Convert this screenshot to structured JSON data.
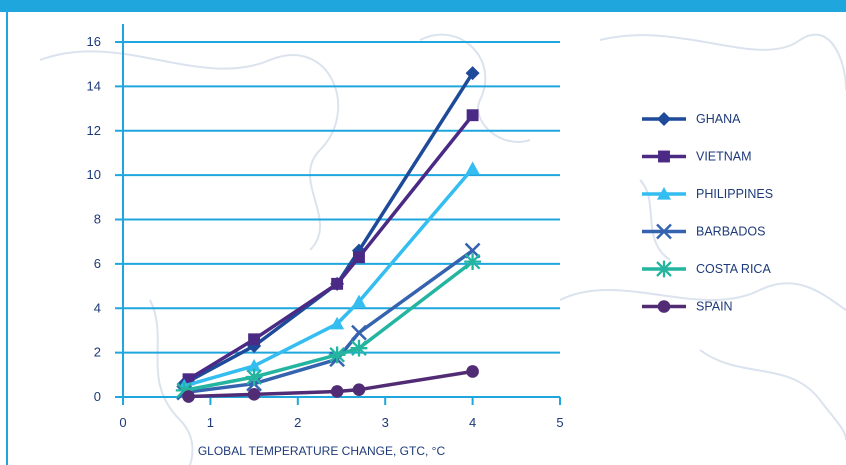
{
  "colors": {
    "top_band": "#1fa7dd",
    "left_rule": "#1fa7dd",
    "gridline": "#1fa7dd",
    "axis_text": "#1e3a7a",
    "xlabel_text": "#1e3a7a",
    "legend_text": "#1e3a7a",
    "map_outline": "#dbe3ee"
  },
  "chart_data": {
    "type": "line",
    "xlabel": "GLOBAL TEMPERATURE CHANGE, GTC, °C",
    "ylabel": "",
    "xlim": [
      0,
      5
    ],
    "ylim": [
      0,
      16
    ],
    "x_ticks": [
      "0",
      "1",
      "2",
      "3",
      "4",
      "5"
    ],
    "y_ticks": [
      "0",
      "2",
      "4",
      "6",
      "8",
      "10",
      "12",
      "14",
      "16"
    ],
    "grid": "horizontal",
    "legend_position": "right",
    "series": [
      {
        "name": "GHANA",
        "color": "#1e4a9a",
        "marker": "diamond",
        "points": [
          [
            0.7,
            0.6
          ],
          [
            1.5,
            2.3
          ],
          [
            2.45,
            5.1
          ],
          [
            2.7,
            6.6
          ],
          [
            4.0,
            14.6
          ]
        ]
      },
      {
        "name": "VIETNAM",
        "color": "#4b2a85",
        "marker": "square",
        "points": [
          [
            0.75,
            0.8
          ],
          [
            1.5,
            2.6
          ],
          [
            2.45,
            5.1
          ],
          [
            2.7,
            6.3
          ],
          [
            4.0,
            12.7
          ]
        ]
      },
      {
        "name": "PHILIPPINES",
        "color": "#33bdf0",
        "marker": "triangle",
        "points": [
          [
            0.7,
            0.5
          ],
          [
            1.5,
            1.4
          ],
          [
            2.45,
            3.3
          ],
          [
            2.7,
            4.3
          ],
          [
            4.0,
            10.3
          ]
        ]
      },
      {
        "name": "BARBADOS",
        "color": "#3563b0",
        "marker": "x",
        "points": [
          [
            0.7,
            0.2
          ],
          [
            1.5,
            0.6
          ],
          [
            2.45,
            1.7
          ],
          [
            2.7,
            2.9
          ],
          [
            4.0,
            6.6
          ]
        ]
      },
      {
        "name": "COSTA RICA",
        "color": "#24b5a0",
        "marker": "asterisk",
        "points": [
          [
            0.7,
            0.3
          ],
          [
            1.5,
            0.9
          ],
          [
            2.45,
            1.9
          ],
          [
            2.7,
            2.2
          ],
          [
            4.0,
            6.1
          ]
        ]
      },
      {
        "name": "SPAIN",
        "color": "#512c74",
        "marker": "circle",
        "points": [
          [
            0.75,
            0.02
          ],
          [
            1.5,
            0.12
          ],
          [
            2.45,
            0.25
          ],
          [
            2.7,
            0.33
          ],
          [
            4.0,
            1.15
          ]
        ]
      }
    ]
  }
}
